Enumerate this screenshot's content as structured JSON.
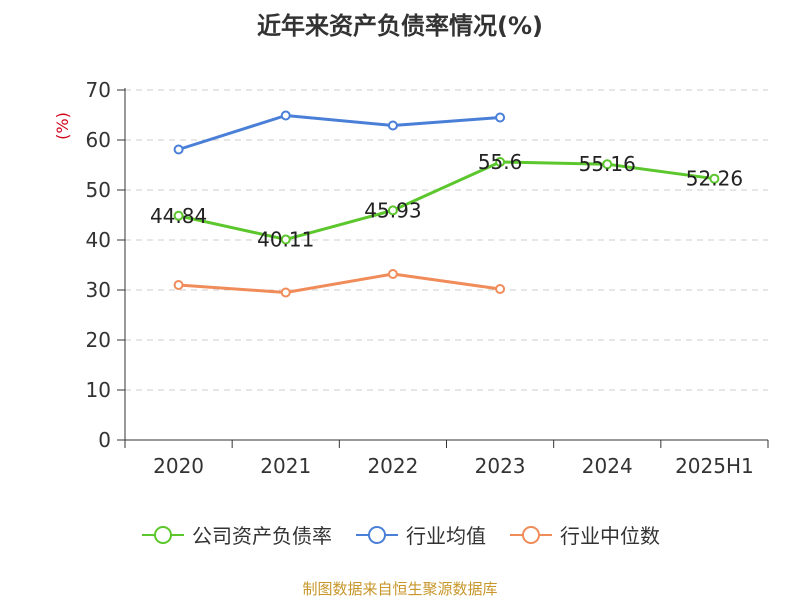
{
  "title": "近年来资产负债率情况(%)",
  "footer": "制图数据来自恒生聚源数据库",
  "chart_data": {
    "type": "line",
    "title": "近年来资产负债率情况(%)",
    "ylabel": "(%)",
    "xlabel": "",
    "categories": [
      "2020",
      "2021",
      "2022",
      "2023",
      "2024",
      "2025H1"
    ],
    "ylim": [
      0,
      70
    ],
    "yticks": [
      0,
      10,
      20,
      30,
      40,
      50,
      60,
      70
    ],
    "grid": true,
    "legend_position": "bottom",
    "series": [
      {
        "name": "公司资产负债率",
        "color": "#5cc72d",
        "values": [
          44.84,
          40.11,
          45.93,
          55.6,
          55.16,
          52.26
        ],
        "labels": [
          "44.84",
          "40.11",
          "45.93",
          "55.6",
          "55.16",
          "52.26"
        ]
      },
      {
        "name": "行业均值",
        "color": "#4a7fd8",
        "values": [
          58.1,
          64.9,
          62.9,
          64.5,
          null,
          null
        ]
      },
      {
        "name": "行业中位数",
        "color": "#f08c5a",
        "values": [
          31.0,
          29.5,
          33.2,
          30.2,
          null,
          null
        ]
      }
    ]
  }
}
